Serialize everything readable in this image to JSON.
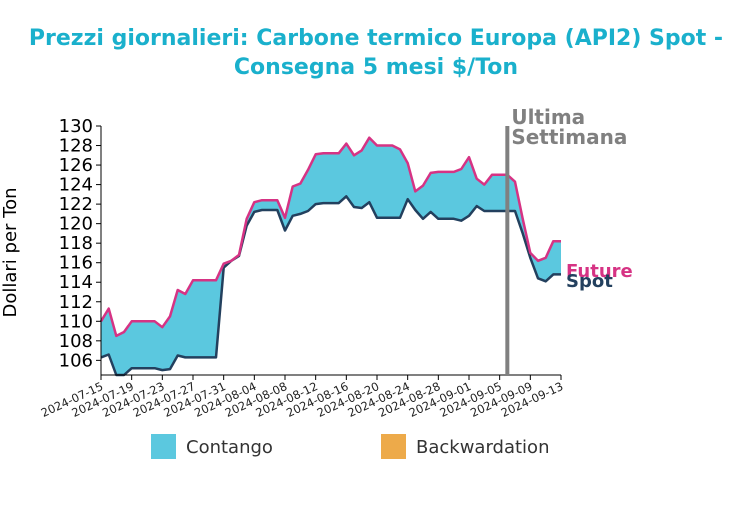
{
  "chart_data": {
    "type": "area",
    "title_line1": "Prezzi giornalieri: Carbone termico Europa (API2) Spot -",
    "title_line2": "Consegna 5 mesi $/Ton",
    "ylabel": "Dollari per Ton",
    "ylim": [
      104.5,
      130
    ],
    "yticks": [
      106,
      108,
      110,
      112,
      114,
      116,
      118,
      120,
      122,
      124,
      126,
      128,
      130
    ],
    "xlim": [
      "2024-07-15",
      "2024-09-13"
    ],
    "xticks": [
      "2024-07-15",
      "2024-07-19",
      "2024-07-23",
      "2024-07-27",
      "2024-07-31",
      "2024-08-04",
      "2024-08-08",
      "2024-08-12",
      "2024-08-16",
      "2024-08-20",
      "2024-08-24",
      "2024-08-28",
      "2024-09-01",
      "2024-09-05",
      "2024-09-09",
      "2024-09-13"
    ],
    "annotation": {
      "line1": "Ultima",
      "line2": "Settimana",
      "date": "2024-09-06",
      "color": "#808080"
    },
    "series": [
      {
        "name": "Future",
        "color": "#d63384",
        "points": [
          [
            "2024-07-15",
            110.0
          ],
          [
            "2024-07-16",
            111.3
          ],
          [
            "2024-07-17",
            108.5
          ],
          [
            "2024-07-18",
            108.9
          ],
          [
            "2024-07-19",
            110.0
          ],
          [
            "2024-07-20",
            110.0
          ],
          [
            "2024-07-21",
            110.0
          ],
          [
            "2024-07-22",
            110.0
          ],
          [
            "2024-07-23",
            109.4
          ],
          [
            "2024-07-24",
            110.5
          ],
          [
            "2024-07-25",
            113.2
          ],
          [
            "2024-07-26",
            112.8
          ],
          [
            "2024-07-27",
            114.2
          ],
          [
            "2024-07-28",
            114.2
          ],
          [
            "2024-07-29",
            114.2
          ],
          [
            "2024-07-30",
            114.2
          ],
          [
            "2024-07-31",
            115.9
          ],
          [
            "2024-08-01",
            116.2
          ],
          [
            "2024-08-02",
            116.8
          ],
          [
            "2024-08-03",
            120.5
          ],
          [
            "2024-08-04",
            122.2
          ],
          [
            "2024-08-05",
            122.4
          ],
          [
            "2024-08-06",
            122.4
          ],
          [
            "2024-08-07",
            122.4
          ],
          [
            "2024-08-08",
            120.6
          ],
          [
            "2024-08-09",
            123.8
          ],
          [
            "2024-08-10",
            124.1
          ],
          [
            "2024-08-11",
            125.5
          ],
          [
            "2024-08-12",
            127.1
          ],
          [
            "2024-08-13",
            127.2
          ],
          [
            "2024-08-14",
            127.2
          ],
          [
            "2024-08-15",
            127.2
          ],
          [
            "2024-08-16",
            128.2
          ],
          [
            "2024-08-17",
            127.0
          ],
          [
            "2024-08-18",
            127.5
          ],
          [
            "2024-08-19",
            128.8
          ],
          [
            "2024-08-20",
            128.0
          ],
          [
            "2024-08-21",
            128.0
          ],
          [
            "2024-08-22",
            128.0
          ],
          [
            "2024-08-23",
            127.6
          ],
          [
            "2024-08-24",
            126.2
          ],
          [
            "2024-08-25",
            123.3
          ],
          [
            "2024-08-26",
            123.9
          ],
          [
            "2024-08-27",
            125.2
          ],
          [
            "2024-08-28",
            125.3
          ],
          [
            "2024-08-29",
            125.3
          ],
          [
            "2024-08-30",
            125.3
          ],
          [
            "2024-08-31",
            125.6
          ],
          [
            "2024-09-01",
            126.8
          ],
          [
            "2024-09-02",
            124.6
          ],
          [
            "2024-09-03",
            124.0
          ],
          [
            "2024-09-04",
            125.0
          ],
          [
            "2024-09-05",
            125.0
          ],
          [
            "2024-09-06",
            125.0
          ],
          [
            "2024-09-07",
            124.3
          ],
          [
            "2024-09-08",
            120.5
          ],
          [
            "2024-09-09",
            117.0
          ],
          [
            "2024-09-10",
            116.2
          ],
          [
            "2024-09-11",
            116.5
          ],
          [
            "2024-09-12",
            118.2
          ],
          [
            "2024-09-13",
            118.2
          ]
        ]
      },
      {
        "name": "Spot",
        "color": "#23405e",
        "points": [
          [
            "2024-07-15",
            106.3
          ],
          [
            "2024-07-16",
            106.6
          ],
          [
            "2024-07-17",
            104.5
          ],
          [
            "2024-07-18",
            104.5
          ],
          [
            "2024-07-19",
            105.2
          ],
          [
            "2024-07-20",
            105.2
          ],
          [
            "2024-07-21",
            105.2
          ],
          [
            "2024-07-22",
            105.2
          ],
          [
            "2024-07-23",
            105.0
          ],
          [
            "2024-07-24",
            105.1
          ],
          [
            "2024-07-25",
            106.5
          ],
          [
            "2024-07-26",
            106.3
          ],
          [
            "2024-07-27",
            106.3
          ],
          [
            "2024-07-28",
            106.3
          ],
          [
            "2024-07-29",
            106.3
          ],
          [
            "2024-07-30",
            106.3
          ],
          [
            "2024-07-31",
            115.5
          ],
          [
            "2024-08-01",
            116.2
          ],
          [
            "2024-08-02",
            116.7
          ],
          [
            "2024-08-03",
            119.8
          ],
          [
            "2024-08-04",
            121.2
          ],
          [
            "2024-08-05",
            121.4
          ],
          [
            "2024-08-06",
            121.4
          ],
          [
            "2024-08-07",
            121.4
          ],
          [
            "2024-08-08",
            119.3
          ],
          [
            "2024-08-09",
            120.8
          ],
          [
            "2024-08-10",
            121.0
          ],
          [
            "2024-08-11",
            121.3
          ],
          [
            "2024-08-12",
            122.0
          ],
          [
            "2024-08-13",
            122.1
          ],
          [
            "2024-08-14",
            122.1
          ],
          [
            "2024-08-15",
            122.1
          ],
          [
            "2024-08-16",
            122.8
          ],
          [
            "2024-08-17",
            121.7
          ],
          [
            "2024-08-18",
            121.6
          ],
          [
            "2024-08-19",
            122.2
          ],
          [
            "2024-08-20",
            120.6
          ],
          [
            "2024-08-21",
            120.6
          ],
          [
            "2024-08-22",
            120.6
          ],
          [
            "2024-08-23",
            120.6
          ],
          [
            "2024-08-24",
            122.5
          ],
          [
            "2024-08-25",
            121.4
          ],
          [
            "2024-08-26",
            120.5
          ],
          [
            "2024-08-27",
            121.2
          ],
          [
            "2024-08-28",
            120.5
          ],
          [
            "2024-08-29",
            120.5
          ],
          [
            "2024-08-30",
            120.5
          ],
          [
            "2024-08-31",
            120.3
          ],
          [
            "2024-09-01",
            120.8
          ],
          [
            "2024-09-02",
            121.8
          ],
          [
            "2024-09-03",
            121.3
          ],
          [
            "2024-09-04",
            121.3
          ],
          [
            "2024-09-05",
            121.3
          ],
          [
            "2024-09-06",
            121.3
          ],
          [
            "2024-09-07",
            121.3
          ],
          [
            "2024-09-08",
            119.0
          ],
          [
            "2024-09-09",
            116.5
          ],
          [
            "2024-09-10",
            114.4
          ],
          [
            "2024-09-11",
            114.1
          ],
          [
            "2024-09-12",
            114.8
          ],
          [
            "2024-09-13",
            114.8
          ]
        ]
      }
    ],
    "legend": {
      "placement": "bottom",
      "items": [
        {
          "label": "Contango",
          "color": "#5bc8df"
        },
        {
          "label": "Backwardation",
          "color": "#edaa4a"
        }
      ]
    }
  }
}
